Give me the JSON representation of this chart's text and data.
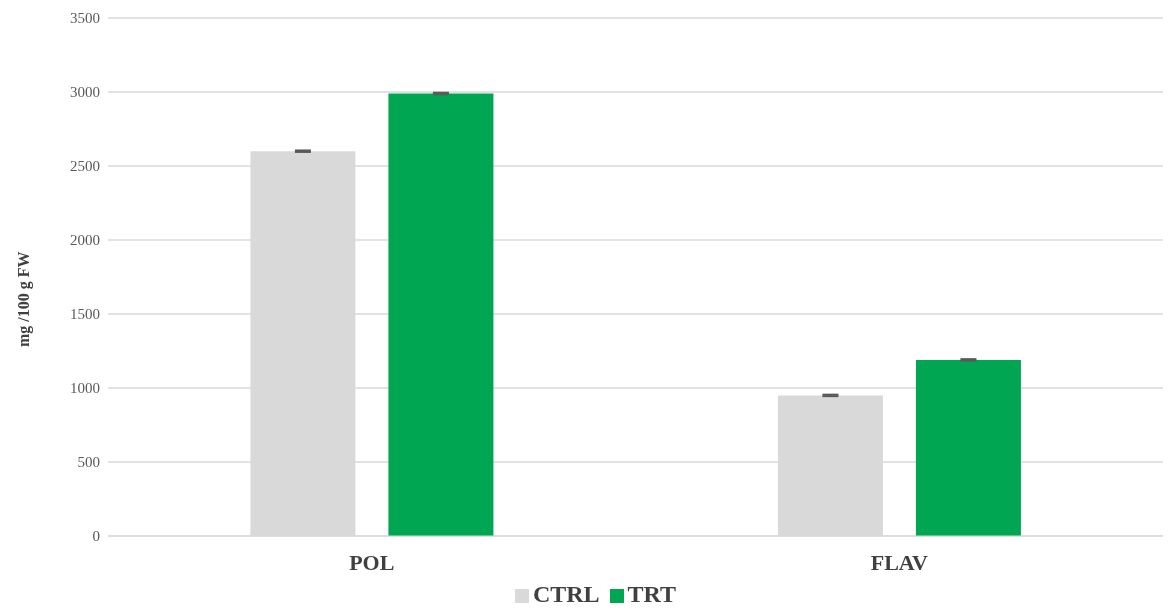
{
  "chart_data": {
    "type": "bar",
    "ylabel": "mg /100 g FW",
    "categories": [
      "POL",
      "FLAV"
    ],
    "series": [
      {
        "name": "CTRL",
        "color": "#d9d9d9",
        "values": [
          2600,
          950
        ],
        "errors": [
          5,
          5
        ]
      },
      {
        "name": "TRT",
        "color": "#00a651",
        "values": [
          2990,
          1190
        ],
        "errors": [
          5,
          5
        ]
      }
    ],
    "ylim": [
      0,
      3500
    ],
    "yticks": [
      0,
      500,
      1000,
      1500,
      2000,
      2500,
      3000,
      3500
    ],
    "grid": "y",
    "legend": "bottom"
  }
}
